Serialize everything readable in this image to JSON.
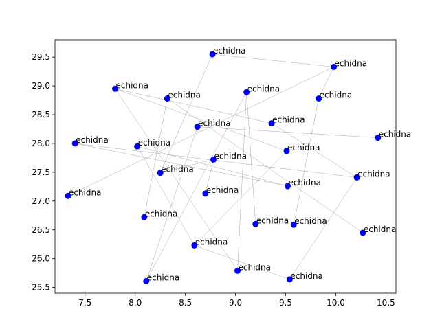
{
  "chart_data": {
    "type": "scatter",
    "title": "",
    "xlabel": "",
    "ylabel": "",
    "xlim": [
      7.2,
      10.6
    ],
    "ylim": [
      25.4,
      29.8
    ],
    "x_ticks": [
      7.5,
      8.0,
      8.5,
      9.0,
      9.5,
      10.0,
      10.5
    ],
    "x_tick_labels": [
      "7.5",
      "8.0",
      "8.5",
      "9.0",
      "9.5",
      "10.0",
      "10.5"
    ],
    "y_ticks": [
      25.5,
      26.0,
      26.5,
      27.0,
      27.5,
      28.0,
      28.5,
      29.0,
      29.5
    ],
    "y_tick_labels": [
      "25.5",
      "26.0",
      "26.5",
      "27.0",
      "27.5",
      "28.0",
      "28.5",
      "29.0",
      "29.5"
    ],
    "grid": false,
    "marker_color": "#0000ff",
    "edge_color": "#808080",
    "points": [
      {
        "x": 8.77,
        "y": 29.55,
        "label": "echidna"
      },
      {
        "x": 9.98,
        "y": 29.33,
        "label": "echidna"
      },
      {
        "x": 7.8,
        "y": 28.95,
        "label": "echidna"
      },
      {
        "x": 9.11,
        "y": 28.89,
        "label": "echidna"
      },
      {
        "x": 8.32,
        "y": 28.78,
        "label": "echidna"
      },
      {
        "x": 9.83,
        "y": 28.78,
        "label": "echidna"
      },
      {
        "x": 9.36,
        "y": 28.35,
        "label": "echidna"
      },
      {
        "x": 8.62,
        "y": 28.29,
        "label": "echidna"
      },
      {
        "x": 10.42,
        "y": 28.1,
        "label": "echidna"
      },
      {
        "x": 7.4,
        "y": 28.0,
        "label": "echidna"
      },
      {
        "x": 8.02,
        "y": 27.95,
        "label": "echidna"
      },
      {
        "x": 9.51,
        "y": 27.87,
        "label": "echidna"
      },
      {
        "x": 8.78,
        "y": 27.72,
        "label": "echidna"
      },
      {
        "x": 8.25,
        "y": 27.49,
        "label": "echidna"
      },
      {
        "x": 10.21,
        "y": 27.41,
        "label": "echidna"
      },
      {
        "x": 9.52,
        "y": 27.26,
        "label": "echidna"
      },
      {
        "x": 8.7,
        "y": 27.13,
        "label": "echidna"
      },
      {
        "x": 7.33,
        "y": 27.09,
        "label": "echidna"
      },
      {
        "x": 8.09,
        "y": 26.72,
        "label": "echidna"
      },
      {
        "x": 9.2,
        "y": 26.6,
        "label": "echidna"
      },
      {
        "x": 9.58,
        "y": 26.59,
        "label": "echidna"
      },
      {
        "x": 10.27,
        "y": 26.45,
        "label": "echidna"
      },
      {
        "x": 8.59,
        "y": 26.23,
        "label": "echidna"
      },
      {
        "x": 9.02,
        "y": 25.79,
        "label": "echidna"
      },
      {
        "x": 9.54,
        "y": 25.64,
        "label": "echidna"
      },
      {
        "x": 8.11,
        "y": 25.61,
        "label": "echidna"
      }
    ],
    "edges": [
      [
        0,
        1
      ],
      [
        0,
        13
      ],
      [
        1,
        17
      ],
      [
        2,
        6
      ],
      [
        2,
        23
      ],
      [
        3,
        19
      ],
      [
        3,
        25
      ],
      [
        4,
        18
      ],
      [
        4,
        21
      ],
      [
        5,
        20
      ],
      [
        6,
        14
      ],
      [
        7,
        8
      ],
      [
        7,
        25
      ],
      [
        9,
        15
      ],
      [
        9,
        14
      ],
      [
        10,
        22
      ],
      [
        10,
        15
      ],
      [
        11,
        22
      ],
      [
        12,
        16
      ],
      [
        11,
        2
      ],
      [
        5,
        1
      ],
      [
        3,
        23
      ],
      [
        24,
        22
      ],
      [
        24,
        14
      ],
      [
        13,
        12
      ]
    ]
  }
}
